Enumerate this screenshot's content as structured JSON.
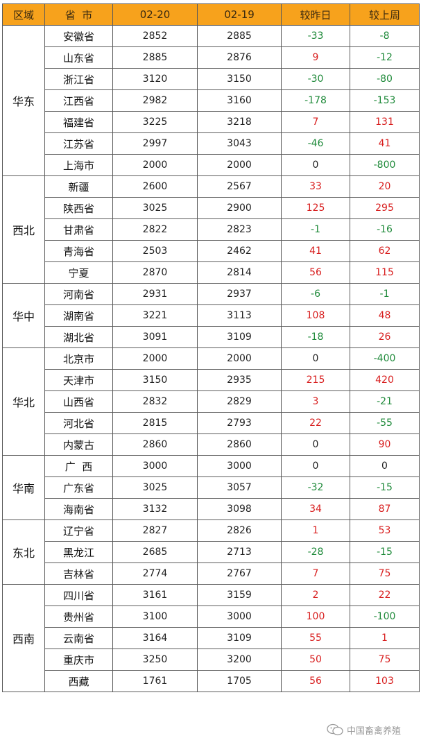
{
  "headers": [
    "区域",
    "省  市",
    "02-20",
    "02-19",
    "较昨日",
    "较上周"
  ],
  "regions": [
    {
      "name": "华东",
      "rows": [
        {
          "prov": "安徽省",
          "d1": "2852",
          "d2": "2885",
          "day": "-33",
          "week": "-8"
        },
        {
          "prov": "山东省",
          "d1": "2885",
          "d2": "2876",
          "day": "9",
          "week": "-12"
        },
        {
          "prov": "浙江省",
          "d1": "3120",
          "d2": "3150",
          "day": "-30",
          "week": "-80"
        },
        {
          "prov": "江西省",
          "d1": "2982",
          "d2": "3160",
          "day": "-178",
          "week": "-153"
        },
        {
          "prov": "福建省",
          "d1": "3225",
          "d2": "3218",
          "day": "7",
          "week": "131"
        },
        {
          "prov": "江苏省",
          "d1": "2997",
          "d2": "3043",
          "day": "-46",
          "week": "41"
        },
        {
          "prov": "上海市",
          "d1": "2000",
          "d2": "2000",
          "day": "0",
          "week": "-800"
        }
      ]
    },
    {
      "name": "西北",
      "rows": [
        {
          "prov": "新疆",
          "d1": "2600",
          "d2": "2567",
          "day": "33",
          "week": "20"
        },
        {
          "prov": "陕西省",
          "d1": "3025",
          "d2": "2900",
          "day": "125",
          "week": "295"
        },
        {
          "prov": "甘肃省",
          "d1": "2822",
          "d2": "2823",
          "day": "-1",
          "week": "-16"
        },
        {
          "prov": "青海省",
          "d1": "2503",
          "d2": "2462",
          "day": "41",
          "week": "62"
        },
        {
          "prov": "宁夏",
          "d1": "2870",
          "d2": "2814",
          "day": "56",
          "week": "115"
        }
      ]
    },
    {
      "name": "华中",
      "rows": [
        {
          "prov": "河南省",
          "d1": "2931",
          "d2": "2937",
          "day": "-6",
          "week": "-1"
        },
        {
          "prov": "湖南省",
          "d1": "3221",
          "d2": "3113",
          "day": "108",
          "week": "48"
        },
        {
          "prov": "湖北省",
          "d1": "3091",
          "d2": "3109",
          "day": "-18",
          "week": "26"
        }
      ]
    },
    {
      "name": "华北",
      "rows": [
        {
          "prov": "北京市",
          "d1": "2000",
          "d2": "2000",
          "day": "0",
          "week": "-400"
        },
        {
          "prov": "天津市",
          "d1": "3150",
          "d2": "2935",
          "day": "215",
          "week": "420"
        },
        {
          "prov": "山西省",
          "d1": "2832",
          "d2": "2829",
          "day": "3",
          "week": "-21"
        },
        {
          "prov": "河北省",
          "d1": "2815",
          "d2": "2793",
          "day": "22",
          "week": "-55"
        },
        {
          "prov": "内蒙古",
          "d1": "2860",
          "d2": "2860",
          "day": "0",
          "week": "90"
        }
      ]
    },
    {
      "name": "华南",
      "rows": [
        {
          "prov": "广  西",
          "d1": "3000",
          "d2": "3000",
          "day": "0",
          "week": "0"
        },
        {
          "prov": "广东省",
          "d1": "3025",
          "d2": "3057",
          "day": "-32",
          "week": "-15"
        },
        {
          "prov": "海南省",
          "d1": "3132",
          "d2": "3098",
          "day": "34",
          "week": "87"
        }
      ]
    },
    {
      "name": "东北",
      "rows": [
        {
          "prov": "辽宁省",
          "d1": "2827",
          "d2": "2826",
          "day": "1",
          "week": "53"
        },
        {
          "prov": "黑龙江",
          "d1": "2685",
          "d2": "2713",
          "day": "-28",
          "week": "-15"
        },
        {
          "prov": "吉林省",
          "d1": "2774",
          "d2": "2767",
          "day": "7",
          "week": "75"
        }
      ]
    },
    {
      "name": "西南",
      "rows": [
        {
          "prov": "四川省",
          "d1": "3161",
          "d2": "3159",
          "day": "2",
          "week": "22"
        },
        {
          "prov": "贵州省",
          "d1": "3100",
          "d2": "3000",
          "day": "100",
          "week": "-100"
        },
        {
          "prov": "云南省",
          "d1": "3164",
          "d2": "3109",
          "day": "55",
          "week": "1"
        },
        {
          "prov": "重庆市",
          "d1": "3250",
          "d2": "3200",
          "day": "50",
          "week": "75"
        },
        {
          "prov": "西藏",
          "d1": "1761",
          "d2": "1705",
          "day": "56",
          "week": "103"
        }
      ]
    }
  ],
  "colors": {
    "header_bg": "#f7a21c",
    "up": "#d81e1e",
    "down": "#1f8a3a"
  },
  "watermark": {
    "icon": "wechat-icon",
    "text": "中国畜禽养殖"
  }
}
